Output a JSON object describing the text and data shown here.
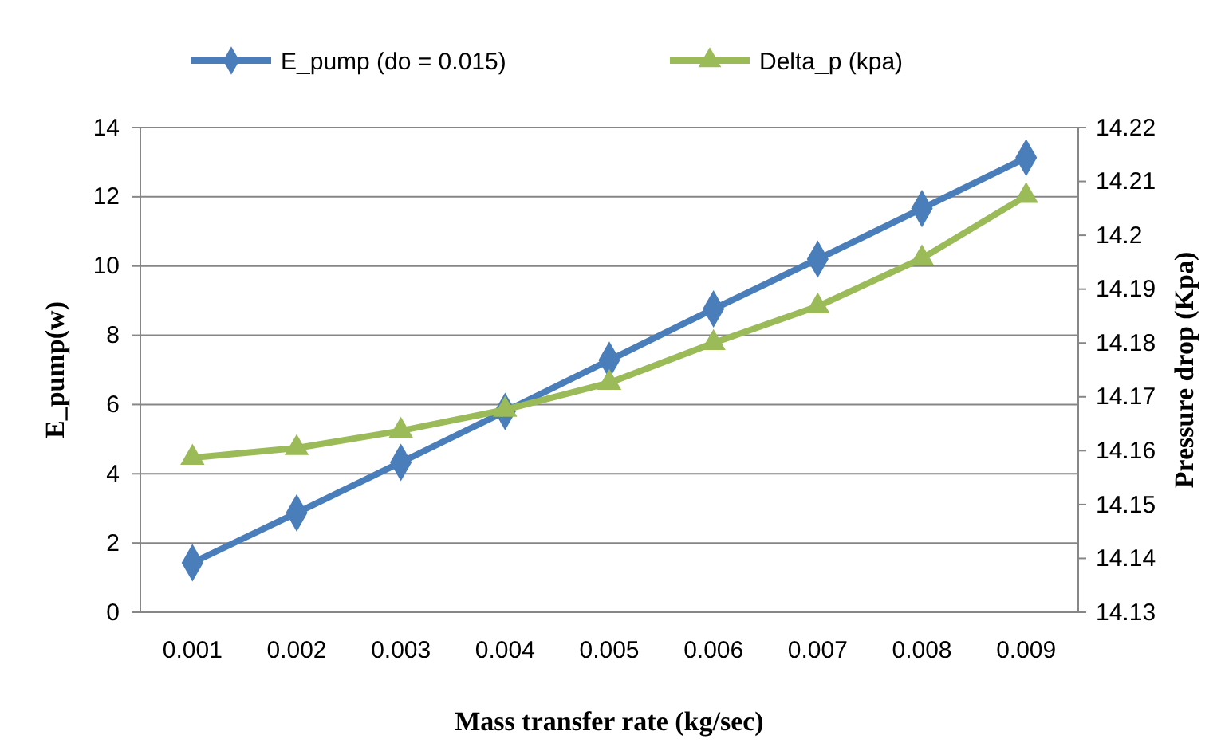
{
  "chart_data": {
    "type": "line",
    "xlabel": "Mass transfer rate (kg/sec)",
    "ylabel": "E_pump(w)",
    "y2label": "Pressure drop (Kpa)",
    "categories": [
      "0.001",
      "0.002",
      "0.003",
      "0.004",
      "0.005",
      "0.006",
      "0.007",
      "0.008",
      "0.009"
    ],
    "series": [
      {
        "name": "E_pump (do = 0.015)",
        "color": "#4a7ebb",
        "marker": "diamond",
        "values": [
          1.43,
          2.87,
          4.33,
          5.8,
          7.28,
          8.76,
          10.2,
          11.66,
          13.13
        ]
      },
      {
        "name": "Delta_p (kpa)",
        "color": "#9bbb59",
        "marker": "triangle",
        "axis": "y2",
        "values": [
          14.1587,
          14.1605,
          14.1637,
          14.1676,
          14.1726,
          14.18,
          14.1868,
          14.1957,
          14.2073
        ]
      }
    ],
    "ylim": [
      0,
      14
    ],
    "yticks": [
      0,
      2,
      4,
      6,
      8,
      10,
      12,
      14
    ],
    "y2lim": [
      14.13,
      14.22
    ],
    "y2ticks": [
      14.13,
      14.14,
      14.15,
      14.16,
      14.17,
      14.18,
      14.19,
      {
        "value": 14.2,
        "label": "14.2"
      },
      14.21,
      14.22
    ],
    "grid": "y",
    "legend": "top"
  }
}
